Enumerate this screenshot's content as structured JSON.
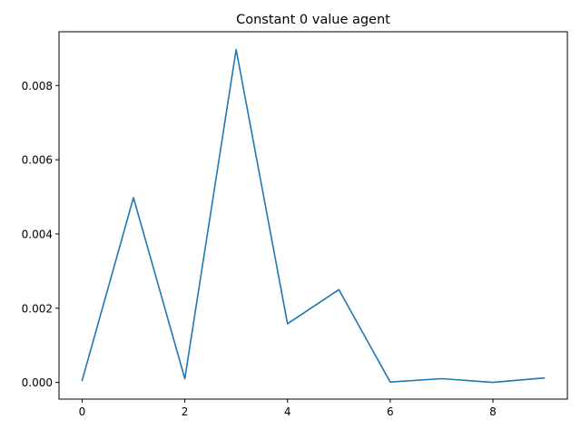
{
  "chart_data": {
    "type": "line",
    "title": "Constant 0 value agent",
    "xlabel": "",
    "ylabel": "",
    "xlim": [
      -0.45,
      9.45
    ],
    "ylim": [
      -0.00045,
      0.00945
    ],
    "x_ticks": [
      0,
      2,
      4,
      6,
      8
    ],
    "x_tick_labels": [
      "0",
      "2",
      "4",
      "6",
      "8"
    ],
    "y_ticks": [
      0.0,
      0.002,
      0.004,
      0.006,
      0.008
    ],
    "y_tick_labels": [
      "0.000",
      "0.002",
      "0.004",
      "0.006",
      "0.008"
    ],
    "grid": false,
    "series": [
      {
        "color": "#1f77b4",
        "x": [
          0,
          1,
          2,
          3,
          4,
          5,
          6,
          7,
          8,
          9
        ],
        "values": [
          5e-05,
          0.00498,
          0.0001,
          0.00897,
          0.00158,
          0.0025,
          1e-05,
          0.0001,
          0.0,
          0.00012
        ]
      }
    ]
  }
}
